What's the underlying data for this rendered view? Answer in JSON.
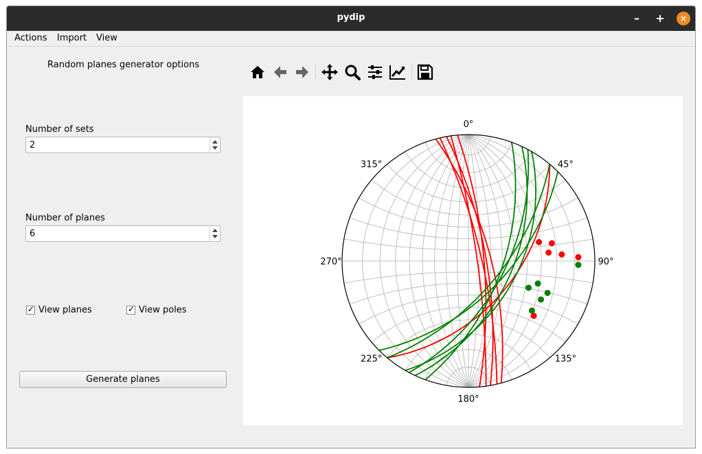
{
  "window": {
    "title": "pydip",
    "buttons": {
      "minimize": "–",
      "maximize": "+",
      "close": "×"
    }
  },
  "menubar": {
    "items": [
      "Actions",
      "Import",
      "View"
    ]
  },
  "left_panel": {
    "heading": "Random planes generator options",
    "sets_label": "Number of sets",
    "sets_value": "2",
    "planes_label": "Number of planes",
    "planes_value": "6",
    "view_planes_label": "View planes",
    "view_planes_checked": true,
    "view_poles_label": "View poles",
    "view_poles_checked": true,
    "generate_button": "Generate planes"
  },
  "toolbar": {
    "icons": [
      "home-icon",
      "back-icon",
      "forward-icon",
      "pan-icon",
      "zoom-icon",
      "configure-subplots-icon",
      "edit-axis-icon",
      "save-icon"
    ]
  },
  "chart_data": {
    "type": "scatter",
    "projection": "stereonet",
    "angle_labels": [
      "0°",
      "45°",
      "90°",
      "135°",
      "180°",
      "225°",
      "270°",
      "315°"
    ],
    "grid": true,
    "series": [
      {
        "color": "#ff0000",
        "planes": [
          {
            "strike": 345,
            "dip": 70
          },
          {
            "strike": 347,
            "dip": 78
          },
          {
            "strike": 350,
            "dip": 74
          },
          {
            "strike": 352,
            "dip": 82
          },
          {
            "strike": 355,
            "dip": 76
          },
          {
            "strike": 40,
            "dip": 50
          }
        ],
        "poles": [
          {
            "trend": 75,
            "plunge": 30
          },
          {
            "trend": 78,
            "plunge": 22
          },
          {
            "trend": 84,
            "plunge": 25
          },
          {
            "trend": 86,
            "plunge": 17
          },
          {
            "trend": 88,
            "plunge": 8
          },
          {
            "trend": 130,
            "plunge": 22
          }
        ]
      },
      {
        "color": "#008000",
        "planes": [
          {
            "strike": 20,
            "dip": 60
          },
          {
            "strike": 25,
            "dip": 52
          },
          {
            "strike": 28,
            "dip": 58
          },
          {
            "strike": 30,
            "dip": 48
          },
          {
            "strike": 40,
            "dip": 62
          },
          {
            "strike": 45,
            "dip": 58
          }
        ],
        "poles": [
          {
            "trend": 92,
            "plunge": 8
          },
          {
            "trend": 108,
            "plunge": 30
          },
          {
            "trend": 112,
            "plunge": 22
          },
          {
            "trend": 114,
            "plunge": 35
          },
          {
            "trend": 118,
            "plunge": 24
          },
          {
            "trend": 128,
            "plunge": 25
          }
        ]
      }
    ]
  }
}
